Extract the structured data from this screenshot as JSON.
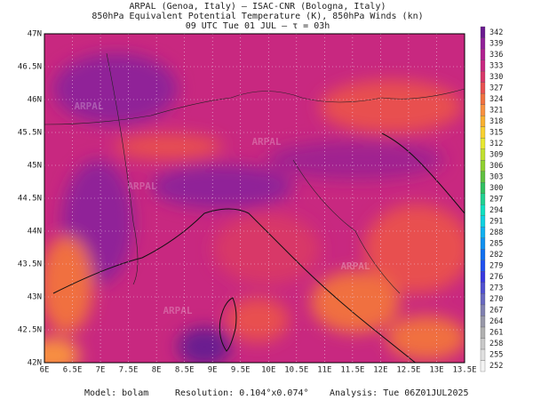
{
  "header": {
    "lines": [
      "ARPAL (Genoa, Italy)  –  ISAC-CNR (Bologna, Italy)",
      "850hPa Equivalent Potential Temperature (K), 850hPa Winds (kn)",
      "09 UTC Tue 01 JUL  –  τ = 03h"
    ]
  },
  "map": {
    "lon_ticks": [
      "6E",
      "6.5E",
      "7E",
      "7.5E",
      "8E",
      "8.5E",
      "9E",
      "9.5E",
      "10E",
      "10.5E",
      "11E",
      "11.5E",
      "12E",
      "12.5E",
      "13E",
      "13.5E"
    ],
    "lat_ticks": [
      "42N",
      "42.5N",
      "43N",
      "43.5N",
      "44N",
      "44.5N",
      "45N",
      "45.5N",
      "46N",
      "46.5N",
      "47N"
    ],
    "watermark": "ARPAL"
  },
  "colorbar": {
    "levels": [
      252,
      255,
      258,
      261,
      264,
      267,
      270,
      273,
      276,
      279,
      282,
      285,
      288,
      291,
      294,
      297,
      300,
      303,
      306,
      309,
      312,
      315,
      318,
      321,
      324,
      327,
      330,
      333,
      336,
      339,
      342
    ],
    "colors": [
      "#f4f4f4",
      "#e0e0e0",
      "#c8c8c8",
      "#b0b0b0",
      "#9898a8",
      "#8080b0",
      "#6868c0",
      "#5050d0",
      "#3838e0",
      "#2050f0",
      "#1070f0",
      "#1090f0",
      "#10b0f0",
      "#10d0e0",
      "#10e0c0",
      "#20d090",
      "#30c060",
      "#60c040",
      "#90d030",
      "#c0e030",
      "#e8e830",
      "#f8d030",
      "#f8b030",
      "#f89040",
      "#f07040",
      "#e85050",
      "#d83868",
      "#c82880",
      "#b02090",
      "#902098",
      "#6a1a90"
    ]
  },
  "footer": {
    "model": "Model: bolam",
    "resolution": "Resolution: 0.104°x0.074°",
    "analysis": "Analysis: Tue 06Z01JUL2025"
  }
}
